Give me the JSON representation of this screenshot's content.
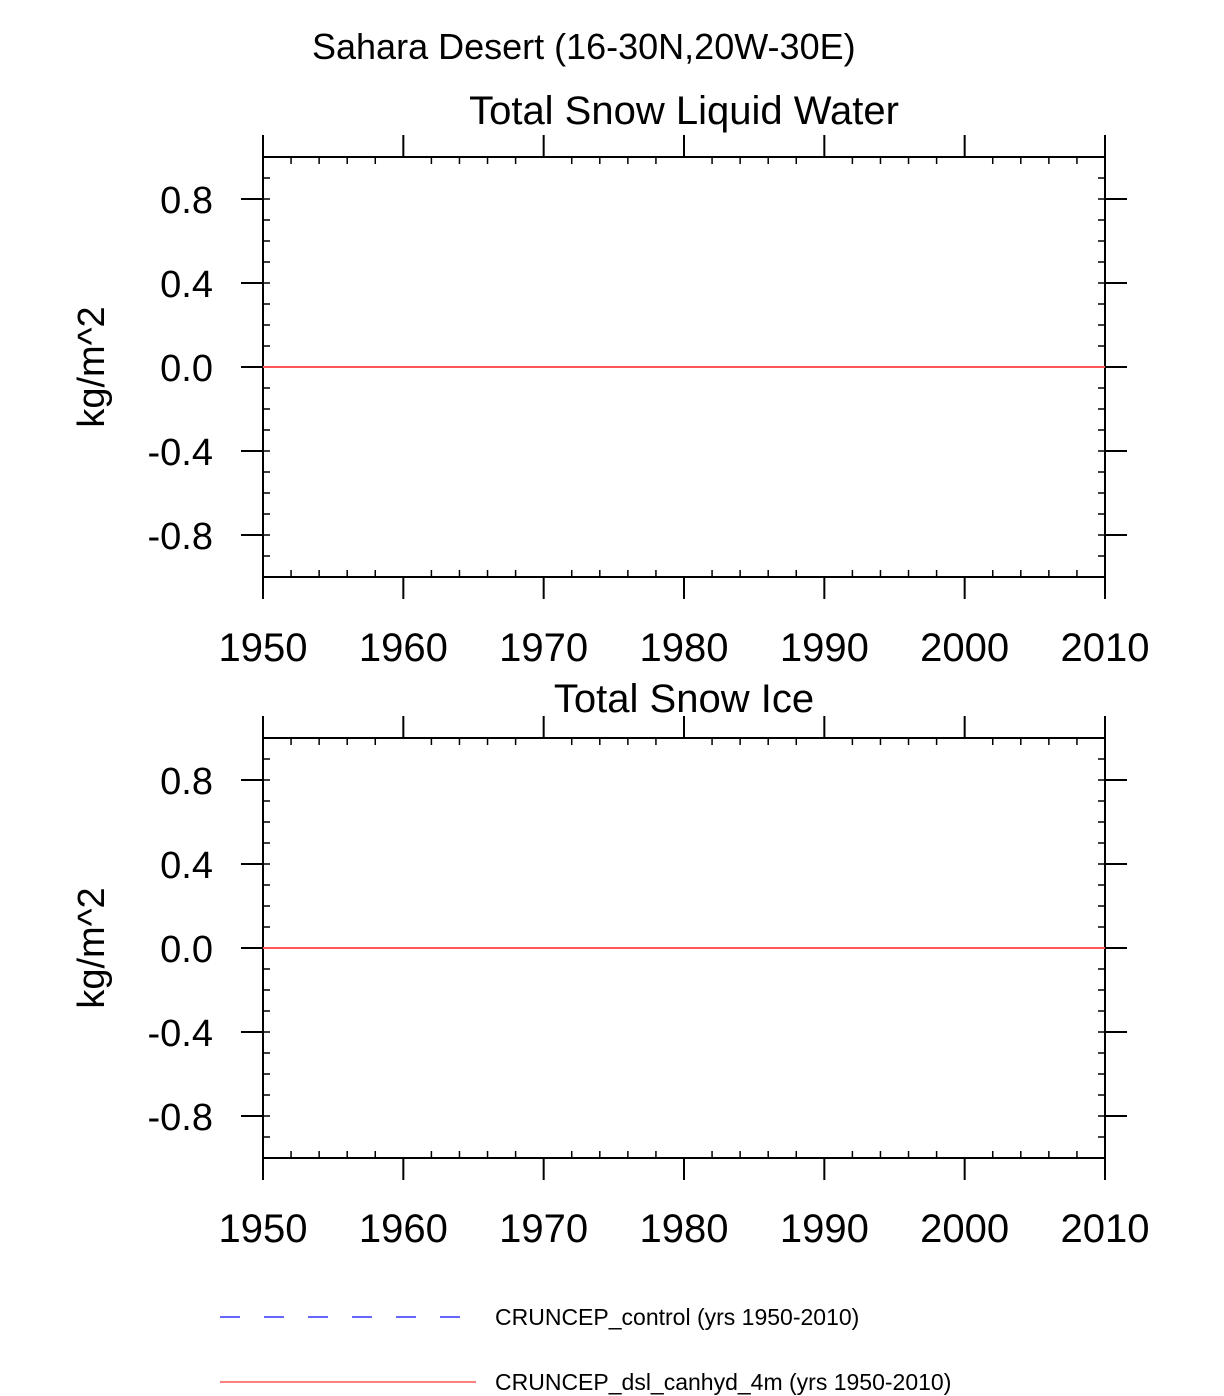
{
  "figure": {
    "suptitle": "Sahara Desert (16-30N,20W-30E)"
  },
  "chart_data": [
    {
      "type": "line",
      "title": "Total Snow Liquid Water",
      "xlabel": "",
      "ylabel": "kg/m^2",
      "xlim": [
        1950,
        2010
      ],
      "ylim": [
        -1,
        1
      ],
      "xticks": [
        "1950",
        "1960",
        "1970",
        "1980",
        "1990",
        "2000",
        "2010"
      ],
      "yticks": [
        "0.8",
        "0.4",
        "0.0",
        "-0.4",
        "-0.8"
      ],
      "ytick_values": [
        0.8,
        0.4,
        0.0,
        -0.4,
        -0.8
      ],
      "xtick_values": [
        1950,
        1960,
        1970,
        1980,
        1990,
        2000,
        2010
      ],
      "series": [
        {
          "name": "CRUNCEP_control (yrs 1950-2010)",
          "color": "#3333ff",
          "style": "dashed",
          "x": [
            1950,
            2010
          ],
          "values": [
            0.0,
            0.0
          ]
        },
        {
          "name": "CRUNCEP_dsl_canhyd_4m (yrs 1950-2010)",
          "color": "#ff5555",
          "style": "solid",
          "x": [
            1950,
            2010
          ],
          "values": [
            0.0,
            0.0
          ]
        }
      ]
    },
    {
      "type": "line",
      "title": "Total Snow Ice",
      "xlabel": "",
      "ylabel": "kg/m^2",
      "xlim": [
        1950,
        2010
      ],
      "ylim": [
        -1,
        1
      ],
      "xticks": [
        "1950",
        "1960",
        "1970",
        "1980",
        "1990",
        "2000",
        "2010"
      ],
      "yticks": [
        "0.8",
        "0.4",
        "0.0",
        "-0.4",
        "-0.8"
      ],
      "ytick_values": [
        0.8,
        0.4,
        0.0,
        -0.4,
        -0.8
      ],
      "xtick_values": [
        1950,
        1960,
        1970,
        1980,
        1990,
        2000,
        2010
      ],
      "series": [
        {
          "name": "CRUNCEP_control (yrs 1950-2010)",
          "color": "#3333ff",
          "style": "dashed",
          "x": [
            1950,
            2010
          ],
          "values": [
            0.0,
            0.0
          ]
        },
        {
          "name": "CRUNCEP_dsl_canhyd_4m (yrs 1950-2010)",
          "color": "#ff5555",
          "style": "solid",
          "x": [
            1950,
            2010
          ],
          "values": [
            0.0,
            0.0
          ]
        }
      ]
    }
  ],
  "legend": {
    "placement": "bottom",
    "entries": [
      {
        "label": "CRUNCEP_control (yrs 1950-2010)",
        "color": "#3333ff",
        "style": "dashed"
      },
      {
        "label": "CRUNCEP_dsl_canhyd_4m (yrs 1950-2010)",
        "color": "#ff5555",
        "style": "solid"
      }
    ]
  }
}
